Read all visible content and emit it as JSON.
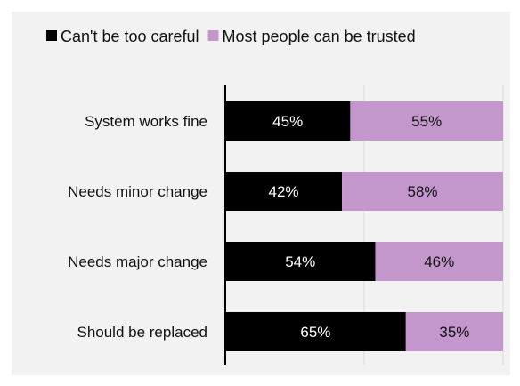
{
  "chart_data": {
    "type": "bar",
    "orientation": "horizontal",
    "stacked": true,
    "categories": [
      "System works fine",
      "Needs minor change",
      "Needs major change",
      "Should be replaced"
    ],
    "series": [
      {
        "name": "Can't be too careful",
        "color": "#000000",
        "label_color": "#ffffff",
        "values": [
          45,
          42,
          54,
          65
        ],
        "labels": [
          "45%",
          "42%",
          "54%",
          "65%"
        ]
      },
      {
        "name": "Most people can be trusted",
        "color": "#c397cc",
        "label_color": "#111111",
        "values": [
          55,
          58,
          46,
          35
        ],
        "labels": [
          "55%",
          "58%",
          "46%",
          "35%"
        ]
      }
    ],
    "title": "",
    "xlabel": "",
    "ylabel": "",
    "xlim": [
      0,
      100
    ],
    "gridlines": [
      50,
      100
    ],
    "legend_position": "top"
  }
}
